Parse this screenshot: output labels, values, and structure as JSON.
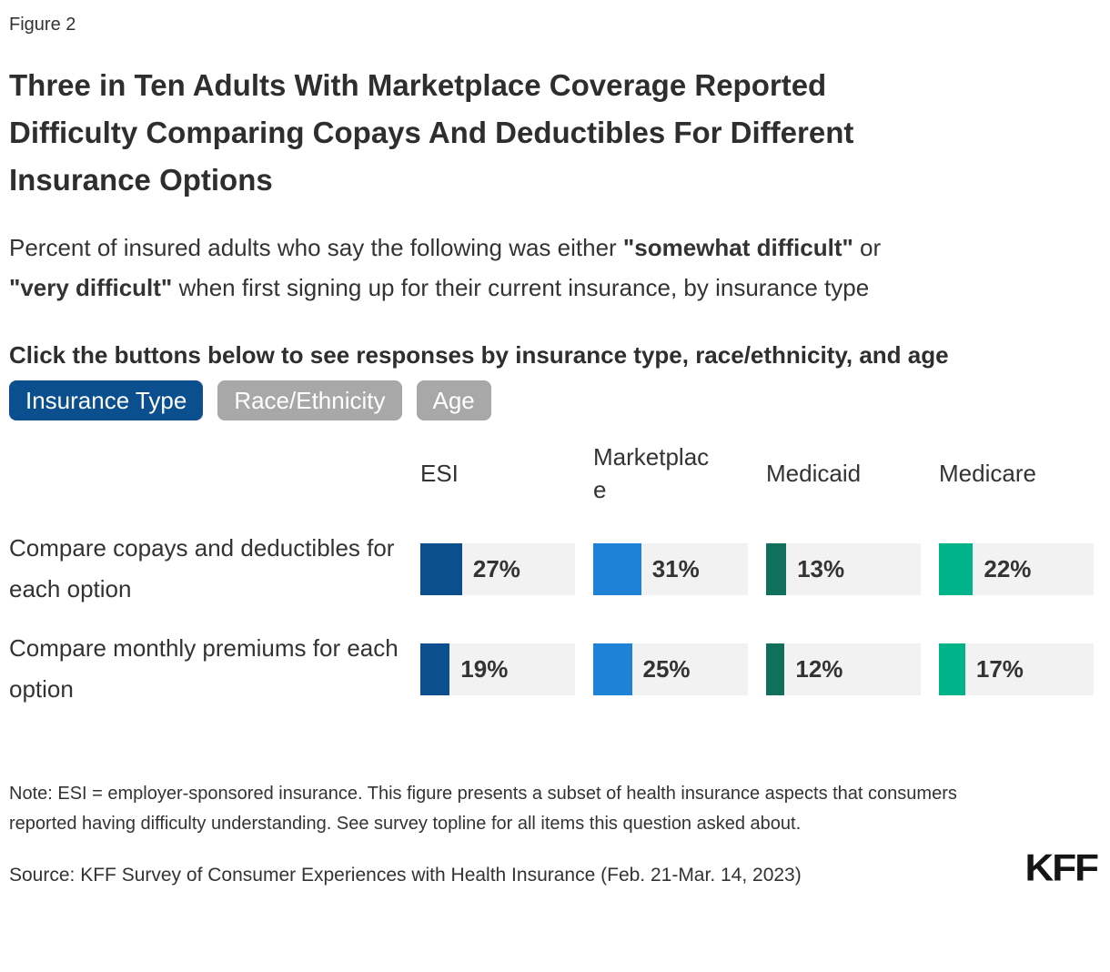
{
  "figure_label": "Figure 2",
  "title": "Three in Ten Adults With Marketplace Coverage Reported Difficulty Comparing Copays And Deductibles For Different Insurance Options",
  "subtitle_segments": [
    {
      "text": "Percent of insured adults who say the following was either ",
      "bold": false
    },
    {
      "text": "\"somewhat difficult\"",
      "bold": true
    },
    {
      "text": " or ",
      "bold": false
    },
    {
      "text": "\"very difficult\"",
      "bold": true
    },
    {
      "text": " when first signing up for their current insurance, by insurance type",
      "bold": false
    }
  ],
  "instruction": "Click the buttons below to see responses by insurance type, race/ethnicity, and age",
  "buttons": [
    {
      "label": "Insurance Type",
      "active": true
    },
    {
      "label": "Race/Ethnicity",
      "active": false
    },
    {
      "label": "Age",
      "active": false
    }
  ],
  "colors": {
    "active_button": "#0B4F8F",
    "inactive_button": "#A8A8A8",
    "bar_track": "#F2F2F2",
    "text": "#333333"
  },
  "chart_data": {
    "type": "bar",
    "categories": [
      "ESI",
      "Marketplace",
      "Medicaid",
      "Medicare"
    ],
    "series": [
      {
        "name": "Compare copays and deductibles for each option",
        "values": [
          27,
          31,
          13,
          22
        ]
      },
      {
        "name": "Compare monthly premiums for each option",
        "values": [
          19,
          25,
          12,
          17
        ]
      }
    ],
    "labels": [
      [
        "27%",
        "31%",
        "13%",
        "22%"
      ],
      [
        "19%",
        "25%",
        "12%",
        "17%"
      ]
    ],
    "bar_colors": [
      "#0B4F8F",
      "#1E82D6",
      "#11705C",
      "#00B388"
    ],
    "value_suffix": "%",
    "xlim": [
      0,
      100
    ],
    "legend": "none",
    "grid": false
  },
  "note": "Note: ESI = employer-sponsored insurance. This figure presents a subset of health insurance aspects that consumers reported having difficulty understanding. See survey topline for all items this question asked about.",
  "source": "Source: KFF Survey of Consumer Experiences with Health Insurance (Feb. 21-Mar. 14, 2023)",
  "logo": "KFF"
}
